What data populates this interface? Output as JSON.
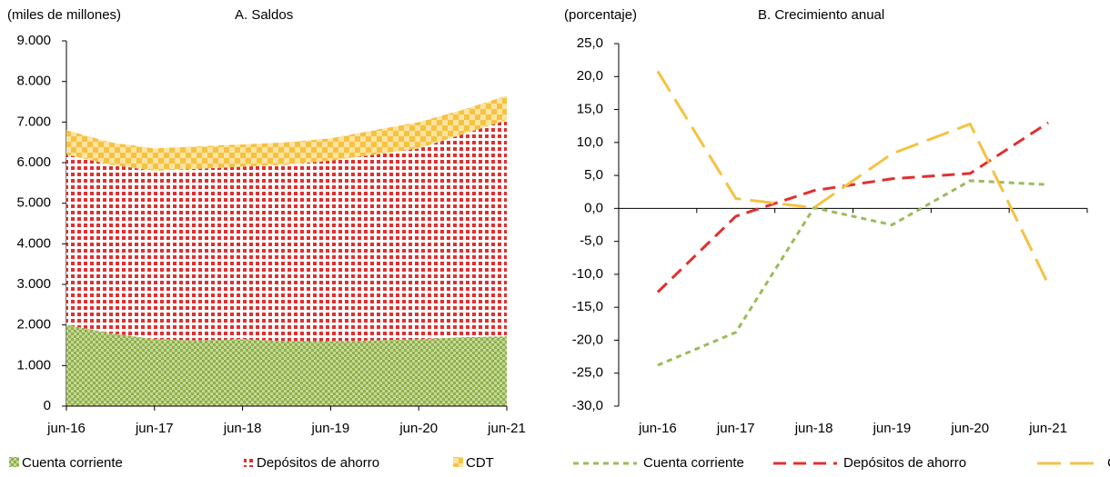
{
  "chart_data": [
    {
      "type": "area",
      "unit_label": "(miles de millones)",
      "title": "A. Saldos",
      "categories": [
        "jun-16",
        null,
        "jun-17",
        null,
        "jun-18",
        null,
        "jun-19",
        null,
        "jun-20",
        null,
        "jun-21"
      ],
      "series": [
        {
          "name": "Cuenta corriente",
          "color": "#9bbb59",
          "values": [
            2000,
            1800,
            1650,
            1620,
            1650,
            1600,
            1600,
            1620,
            1650,
            1700,
            1720
          ]
        },
        {
          "name": "Depósitos de ahorro",
          "color": "#e03030",
          "values": [
            4200,
            4150,
            4150,
            4230,
            4250,
            4350,
            4450,
            4580,
            4700,
            5000,
            5330
          ]
        },
        {
          "name": "CDT",
          "color": "#f5c242",
          "values": [
            600,
            550,
            550,
            550,
            550,
            550,
            550,
            600,
            650,
            600,
            600
          ]
        }
      ],
      "ylim": [
        0,
        9000
      ],
      "yticks": [
        0,
        {
          "value": 1000,
          "label": "1.000"
        },
        {
          "value": 2000,
          "label": "2.000"
        },
        {
          "value": 3000,
          "label": "3.000"
        },
        {
          "value": 4000,
          "label": "4.000"
        },
        {
          "value": 5000,
          "label": "5.000"
        },
        {
          "value": 6000,
          "label": "6.000"
        },
        {
          "value": 7000,
          "label": "7.000"
        },
        {
          "value": 8000,
          "label": "8.000"
        },
        {
          "value": 9000,
          "label": "9.000"
        }
      ]
    },
    {
      "type": "line",
      "unit_label": "(porcentaje)",
      "title": "B. Crecimiento anual",
      "categories": [
        "jun-16",
        "jun-17",
        "jun-18",
        "jun-19",
        "jun-20",
        "jun-21"
      ],
      "series": [
        {
          "name": "Cuenta corriente",
          "color": "#9bbb59",
          "values": [
            -23.8,
            -18.8,
            0.1,
            -2.5,
            4.2,
            3.6
          ]
        },
        {
          "name": "Depósitos de ahorro",
          "color": "#e03030",
          "values": [
            -12.7,
            -1.2,
            2.7,
            4.5,
            5.3,
            13.0
          ]
        },
        {
          "name": "CDT",
          "color": "#f5c242",
          "values": [
            20.8,
            1.5,
            0.1,
            8.3,
            12.8,
            -11.5
          ]
        }
      ],
      "ylim": [
        -30,
        25
      ],
      "yticks": [
        {
          "value": -30,
          "label": "-30,0"
        },
        {
          "value": -25,
          "label": "-25,0"
        },
        {
          "value": -20,
          "label": "-20,0"
        },
        {
          "value": -15,
          "label": "-15,0"
        },
        {
          "value": -10,
          "label": "-10,0"
        },
        {
          "value": -5,
          "label": "-5,0"
        },
        {
          "value": 0,
          "label": "0,0"
        },
        {
          "value": 5,
          "label": "5,0"
        },
        {
          "value": 10,
          "label": "10,0"
        },
        {
          "value": 15,
          "label": "15,0"
        },
        {
          "value": 20,
          "label": "20,0"
        },
        {
          "value": 25,
          "label": "25,0"
        }
      ]
    }
  ]
}
